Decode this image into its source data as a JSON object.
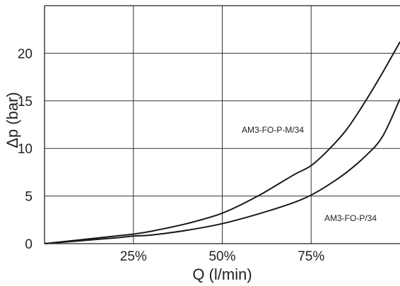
{
  "chart_data": {
    "type": "line",
    "xlabel": "Q (l/min)",
    "ylabel": "Δp (bar)",
    "x_ticks": [
      "25%",
      "50%",
      "75%"
    ],
    "x_tick_values": [
      25,
      50,
      75
    ],
    "y_ticks": [
      "0",
      "5",
      "10",
      "15",
      "20"
    ],
    "y_tick_values": [
      0,
      5,
      10,
      15,
      20
    ],
    "xlim": [
      0,
      100
    ],
    "ylim": [
      0,
      25
    ],
    "grid": true,
    "series": [
      {
        "name": "AM3-FO-P-M/34",
        "x": [
          0,
          10,
          20,
          25,
          30,
          40,
          50,
          60,
          70,
          75,
          80,
          85,
          90,
          95,
          100
        ],
        "y": [
          0,
          0.4,
          0.8,
          1.0,
          1.3,
          2.1,
          3.2,
          5.0,
          7.2,
          8.2,
          9.9,
          12.0,
          14.8,
          17.9,
          21.2
        ]
      },
      {
        "name": "AM3-FO-P/34",
        "x": [
          0,
          10,
          20,
          25,
          30,
          40,
          50,
          60,
          70,
          75,
          80,
          85,
          90,
          95,
          100
        ],
        "y": [
          0,
          0.3,
          0.6,
          0.8,
          0.9,
          1.4,
          2.1,
          3.1,
          4.3,
          5.1,
          6.2,
          7.5,
          9.1,
          11.2,
          15.2
        ]
      }
    ]
  }
}
